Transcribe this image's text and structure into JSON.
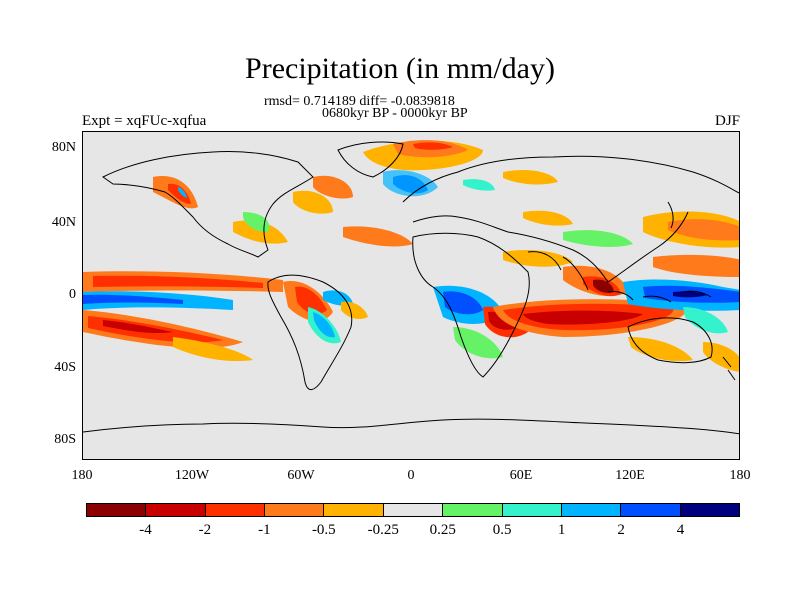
{
  "title": "Precipitation (in mm/day)",
  "stats_line": "rmsd= 0.714189 diff= -0.0839818",
  "period_line": "0680kyr BP - 0000kyr BP",
  "expt_label": "Expt = xqFUc-xqfua",
  "season": "DJF",
  "y_ticks": [
    "80N",
    "40N",
    "0",
    "40S",
    "80S"
  ],
  "x_ticks": [
    "180",
    "120W",
    "60W",
    "0",
    "60E",
    "120E",
    "180"
  ],
  "colorbar": {
    "colors": [
      "#8b0000",
      "#c80000",
      "#ff3000",
      "#ff7a1a",
      "#ffb300",
      "#e6e6e6",
      "#66f266",
      "#33f2cc",
      "#00b4ff",
      "#0050ff",
      "#00007f"
    ],
    "labels": [
      "-4",
      "-2",
      "-1",
      "-0.5",
      "-0.25",
      "0.25",
      "0.5",
      "1",
      "2",
      "4"
    ]
  },
  "chart_data": {
    "type": "heatmap",
    "title": "Precipitation (in mm/day)",
    "subtitle": "0680kyr BP - 0000kyr BP",
    "variable": "precipitation difference",
    "units": "mm/day",
    "season": "DJF",
    "experiment": "xqFUc-xqfua",
    "rmsd": 0.714189,
    "diff": -0.0839818,
    "x_range": [
      -180,
      180
    ],
    "y_range": [
      -90,
      90
    ],
    "contour_levels": [
      -4,
      -2,
      -1,
      -0.5,
      -0.25,
      0.25,
      0.5,
      1,
      2,
      4
    ]
  }
}
